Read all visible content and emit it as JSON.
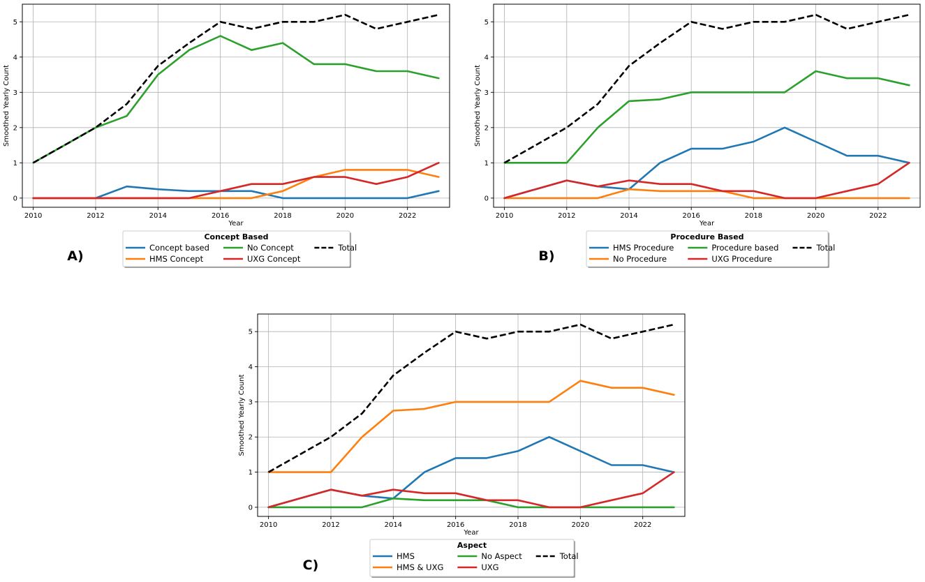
{
  "chart_data": [
    {
      "type": "line",
      "panel_label": "A)",
      "xlabel": "Year",
      "ylabel": "Smoothed Yearly Count",
      "xlim": [
        2009.65,
        2023.35
      ],
      "ylim": [
        -0.26,
        5.5
      ],
      "x_ticks": [
        2010,
        2012,
        2014,
        2016,
        2018,
        2020,
        2022
      ],
      "y_ticks": [
        0,
        1,
        2,
        3,
        4,
        5
      ],
      "grid": true,
      "legend": {
        "title": "Concept Based",
        "columns": 3,
        "placement": "below"
      },
      "x": [
        2010,
        2011,
        2012,
        2013,
        2014,
        2015,
        2016,
        2017,
        2018,
        2019,
        2020,
        2021,
        2022,
        2023
      ],
      "series": [
        {
          "name": "Concept based",
          "color": "#1f77b4",
          "dashed": false,
          "values": [
            0,
            0,
            0,
            0.33,
            0.25,
            0.2,
            0.2,
            0.2,
            0,
            0,
            0,
            0,
            0,
            0.2
          ]
        },
        {
          "name": "HMS Concept",
          "color": "#ff7f0e",
          "dashed": false,
          "values": [
            0,
            0,
            0,
            0,
            0,
            0,
            0,
            0,
            0.2,
            0.6,
            0.8,
            0.8,
            0.8,
            0.6
          ]
        },
        {
          "name": "No Concept",
          "color": "#2ca02c",
          "dashed": false,
          "values": [
            1,
            1.5,
            2,
            2.33,
            3.5,
            4.2,
            4.6,
            4.2,
            4.4,
            3.8,
            3.8,
            3.6,
            3.6,
            3.4
          ]
        },
        {
          "name": "UXG Concept",
          "color": "#d62728",
          "dashed": false,
          "values": [
            0,
            0,
            0,
            0,
            0,
            0,
            0.2,
            0.4,
            0.4,
            0.6,
            0.6,
            0.4,
            0.6,
            1.0
          ]
        },
        {
          "name": "Total",
          "color": "#000000",
          "dashed": true,
          "values": [
            1,
            1.5,
            2,
            2.67,
            3.75,
            4.4,
            5.0,
            4.8,
            5.0,
            5.0,
            5.2,
            4.8,
            5.0,
            5.2
          ]
        }
      ]
    },
    {
      "type": "line",
      "panel_label": "B)",
      "xlabel": "Year",
      "ylabel": "Smoothed Yearly Count",
      "xlim": [
        2009.65,
        2023.35
      ],
      "ylim": [
        -0.26,
        5.5
      ],
      "x_ticks": [
        2010,
        2012,
        2014,
        2016,
        2018,
        2020,
        2022
      ],
      "y_ticks": [
        0,
        1,
        2,
        3,
        4,
        5
      ],
      "grid": true,
      "legend": {
        "title": "Procedure Based",
        "columns": 3,
        "placement": "below"
      },
      "x": [
        2010,
        2011,
        2012,
        2013,
        2014,
        2015,
        2016,
        2017,
        2018,
        2019,
        2020,
        2021,
        2022,
        2023
      ],
      "series": [
        {
          "name": "HMS Procedure",
          "color": "#1f77b4",
          "dashed": false,
          "values": [
            0,
            0.25,
            0.5,
            0.33,
            0.25,
            1.0,
            1.4,
            1.4,
            1.6,
            2.0,
            1.6,
            1.2,
            1.2,
            1.0
          ]
        },
        {
          "name": "No Procedure",
          "color": "#ff7f0e",
          "dashed": false,
          "values": [
            0,
            0,
            0,
            0,
            0.25,
            0.2,
            0.2,
            0.2,
            0,
            0,
            0,
            0,
            0,
            0
          ]
        },
        {
          "name": "Procedure based",
          "color": "#2ca02c",
          "dashed": false,
          "values": [
            1,
            1,
            1,
            2,
            2.75,
            2.8,
            3,
            3,
            3,
            3,
            3.6,
            3.4,
            3.4,
            3.2
          ]
        },
        {
          "name": "UXG Procedure",
          "color": "#d62728",
          "dashed": false,
          "values": [
            0,
            0.25,
            0.5,
            0.33,
            0.5,
            0.4,
            0.4,
            0.2,
            0.2,
            0,
            0,
            0.2,
            0.4,
            1.0
          ]
        },
        {
          "name": "Total",
          "color": "#000000",
          "dashed": true,
          "values": [
            1,
            1.5,
            2,
            2.67,
            3.75,
            4.4,
            5.0,
            4.8,
            5.0,
            5.0,
            5.2,
            4.8,
            5.0,
            5.2
          ]
        }
      ]
    },
    {
      "type": "line",
      "panel_label": "C)",
      "xlabel": "Year",
      "ylabel": "Smoothed Yearly Count",
      "xlim": [
        2009.65,
        2023.35
      ],
      "ylim": [
        -0.26,
        5.5
      ],
      "x_ticks": [
        2010,
        2012,
        2014,
        2016,
        2018,
        2020,
        2022
      ],
      "y_ticks": [
        0,
        1,
        2,
        3,
        4,
        5
      ],
      "grid": true,
      "legend": {
        "title": "Aspect",
        "columns": 3,
        "placement": "below"
      },
      "x": [
        2010,
        2011,
        2012,
        2013,
        2014,
        2015,
        2016,
        2017,
        2018,
        2019,
        2020,
        2021,
        2022,
        2023
      ],
      "series": [
        {
          "name": "HMS",
          "color": "#1f77b4",
          "dashed": false,
          "values": [
            0,
            0.25,
            0.5,
            0.33,
            0.25,
            1.0,
            1.4,
            1.4,
            1.6,
            2.0,
            1.6,
            1.2,
            1.2,
            1.0
          ]
        },
        {
          "name": "HMS & UXG",
          "color": "#ff7f0e",
          "dashed": false,
          "values": [
            1,
            1,
            1,
            2,
            2.75,
            2.8,
            3,
            3,
            3,
            3,
            3.6,
            3.4,
            3.4,
            3.2
          ]
        },
        {
          "name": "No Aspect",
          "color": "#2ca02c",
          "dashed": false,
          "values": [
            0,
            0,
            0,
            0,
            0.25,
            0.2,
            0.2,
            0.2,
            0,
            0,
            0,
            0,
            0,
            0
          ]
        },
        {
          "name": "UXG",
          "color": "#d62728",
          "dashed": false,
          "values": [
            0,
            0.25,
            0.5,
            0.33,
            0.5,
            0.4,
            0.4,
            0.2,
            0.2,
            0,
            0,
            0.2,
            0.4,
            1.0
          ]
        },
        {
          "name": "Total",
          "color": "#000000",
          "dashed": true,
          "values": [
            1,
            1.5,
            2,
            2.67,
            3.75,
            4.4,
            5.0,
            4.8,
            5.0,
            5.0,
            5.2,
            4.8,
            5.0,
            5.2
          ]
        }
      ]
    }
  ]
}
